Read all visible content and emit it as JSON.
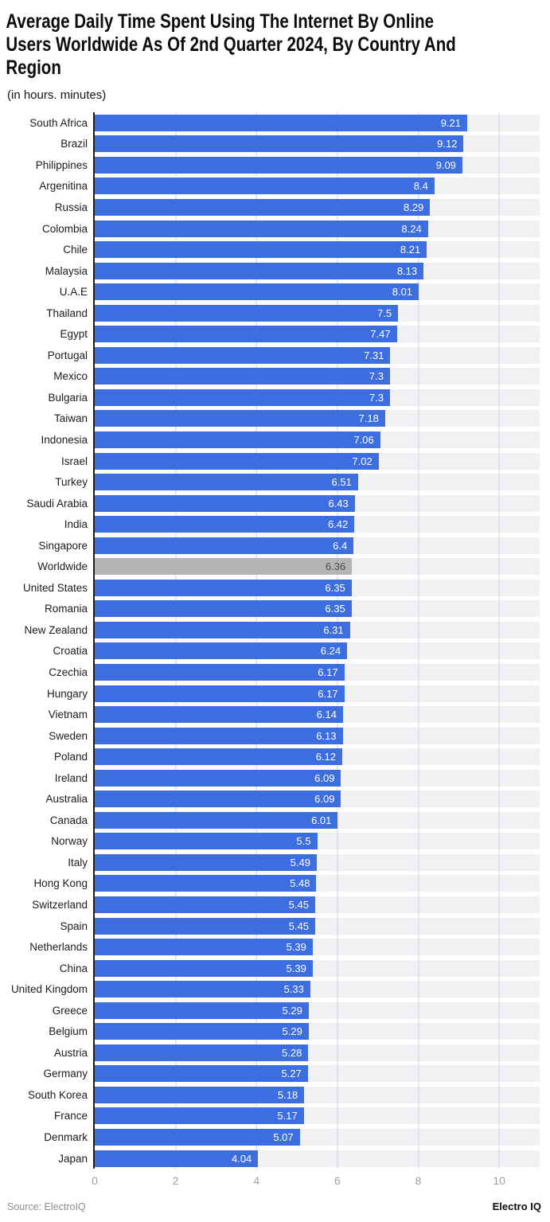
{
  "header": {
    "title": "Average Daily Time Spent Using The Internet By Online Users Worldwide As Of 2nd Quarter 2024, By Country And Region",
    "title_lines": [
      "Average Daily Time Spent Using The Internet By Online",
      "Users Worldwide As Of 2nd Quarter 2024, By Country And",
      "Region"
    ],
    "subtitle": "(in hours. minutes)"
  },
  "chart_data": {
    "type": "bar",
    "orientation": "horizontal",
    "title": "Average Daily Time Spent Using The Internet By Online Users Worldwide As Of 2nd Quarter 2024, By Country And Region",
    "subtitle": "(in hours. minutes)",
    "xlabel": "",
    "ylabel": "",
    "xlim": [
      0,
      11
    ],
    "xticks": [
      0,
      2,
      4,
      6,
      8,
      10
    ],
    "grid": "vertical",
    "legend": "none",
    "value_labels": "inside-end",
    "highlight_category": "Worldwide",
    "categories": [
      "South Africa",
      "Brazil",
      "Philippines",
      "Argenitina",
      "Russia",
      "Colombia",
      "Chile",
      "Malaysia",
      "U.A.E",
      "Thailand",
      "Egypt",
      "Portugal",
      "Mexico",
      "Bulgaria",
      "Taiwan",
      "Indonesia",
      "Israel",
      "Turkey",
      "Saudi Arabia",
      "India",
      "Singapore",
      "Worldwide",
      "United States",
      "Romania",
      "New Zealand",
      "Croatia",
      "Czechia",
      "Hungary",
      "Vietnam",
      "Sweden",
      "Poland",
      "Ireland",
      "Australia",
      "Canada",
      "Norway",
      "Italy",
      "Hong Kong",
      "Switzerland",
      "Spain",
      "Netherlands",
      "China",
      "United Kingdom",
      "Greece",
      "Belgium",
      "Austria",
      "Germany",
      "South Korea",
      "France",
      "Denmark",
      "Japan"
    ],
    "values": [
      9.21,
      9.12,
      9.09,
      8.4,
      8.29,
      8.24,
      8.21,
      8.13,
      8.01,
      7.5,
      7.47,
      7.31,
      7.3,
      7.3,
      7.18,
      7.06,
      7.02,
      6.51,
      6.43,
      6.42,
      6.4,
      6.36,
      6.35,
      6.35,
      6.31,
      6.24,
      6.17,
      6.17,
      6.14,
      6.13,
      6.12,
      6.09,
      6.09,
      6.01,
      5.5,
      5.49,
      5.48,
      5.45,
      5.45,
      5.39,
      5.39,
      5.33,
      5.29,
      5.29,
      5.28,
      5.27,
      5.18,
      5.17,
      5.07,
      4.04
    ],
    "colors": {
      "bar": "#3d6ee0",
      "highlight_bar": "#b5b5b5",
      "value_label": "#ffffff",
      "highlight_value_label": "#4a4a4a",
      "track": "#f1f1f3",
      "gridline": "#d5dbe9",
      "axis_line": "#1f1f1f",
      "tick_label": "#9aa0a8"
    }
  },
  "footer": {
    "source": "Source: ElectroIQ",
    "brand": "Electro IQ"
  }
}
